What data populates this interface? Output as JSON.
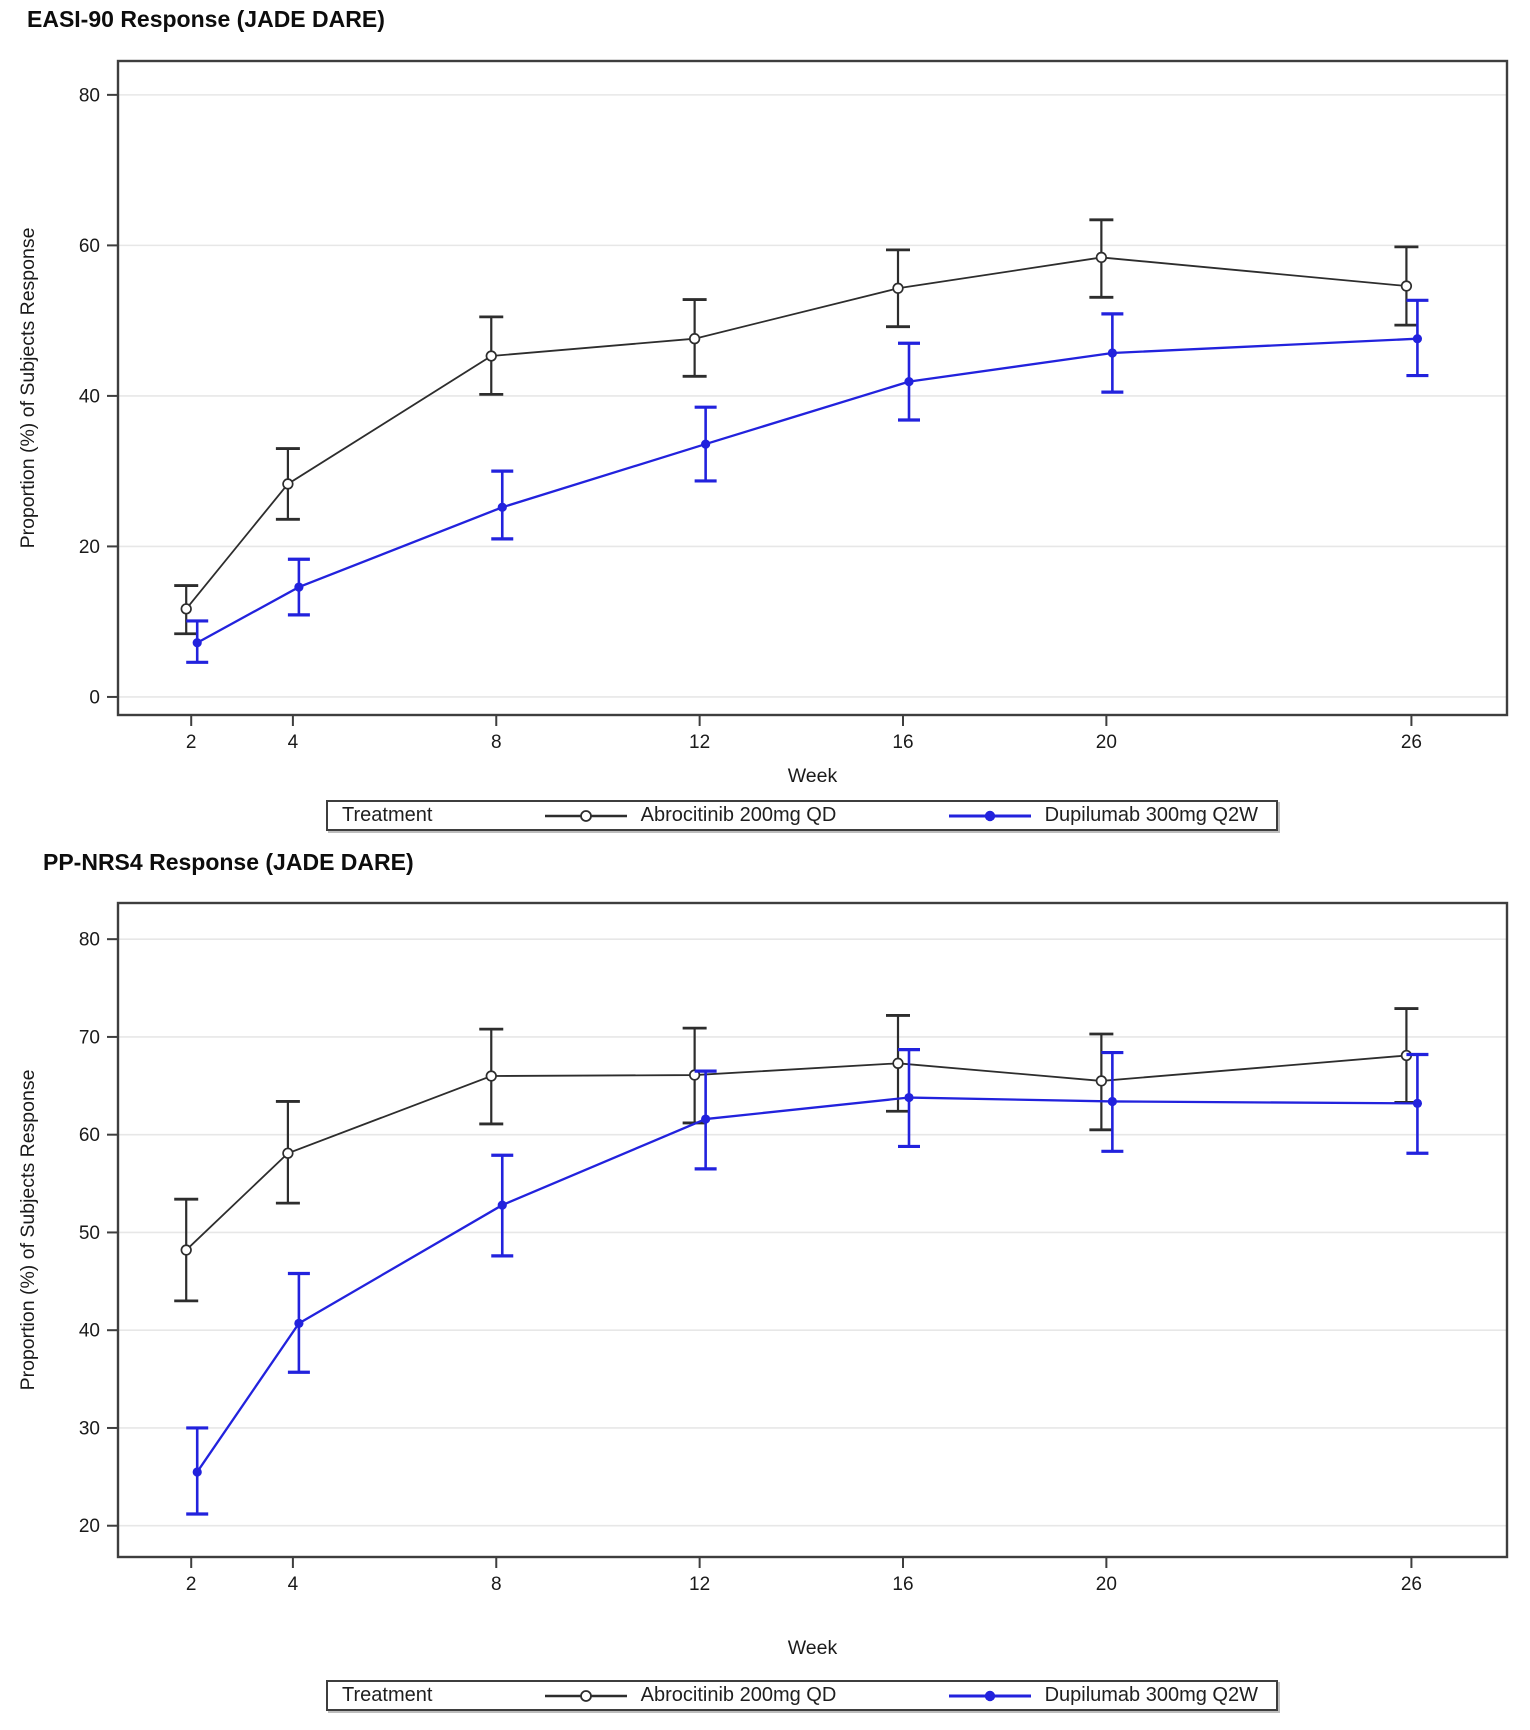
{
  "colors": {
    "abrocitinib": "#2d2d2d",
    "dupilumab": "#2222dd",
    "gridline": "#e7e7e7",
    "frame": "#3e3e3e",
    "text": "#1a1a1a"
  },
  "chart_data": [
    {
      "type": "line",
      "title": "EASI-90 Response (JADE DARE)",
      "xlabel": "Week",
      "ylabel": "Proportion (%) of Subjects Response",
      "x_ticks": [
        2,
        4,
        8,
        12,
        16,
        20,
        26
      ],
      "y_ticks": [
        0,
        20,
        40,
        60,
        80
      ],
      "xlim": [
        0.56,
        27.88
      ],
      "ylim": [
        -2.4,
        84.5
      ],
      "grid": true,
      "legend_label": "Treatment",
      "legend_position": "bottom",
      "series": [
        {
          "name": "Abrocitinib 200mg QD",
          "color": "#2d2d2d",
          "marker": "open-circle",
          "x": [
            2,
            4,
            8,
            12,
            16,
            20,
            26
          ],
          "y": [
            11.7,
            28.3,
            45.3,
            47.6,
            54.3,
            58.4,
            54.6
          ],
          "err_low": [
            8.4,
            23.6,
            40.2,
            42.6,
            49.2,
            53.1,
            49.4
          ],
          "err_high": [
            14.8,
            33.0,
            50.5,
            52.8,
            59.4,
            63.4,
            59.8
          ]
        },
        {
          "name": "Dupilumab 300mg Q2W",
          "color": "#2222dd",
          "marker": "filled-circle",
          "x": [
            2,
            4,
            8,
            12,
            16,
            20,
            26
          ],
          "y": [
            7.2,
            14.6,
            25.2,
            33.6,
            41.9,
            45.7,
            47.6
          ],
          "err_low": [
            4.6,
            10.9,
            21.0,
            28.7,
            36.8,
            40.5,
            42.7
          ],
          "err_high": [
            10.1,
            18.3,
            30.0,
            38.5,
            47.0,
            50.9,
            52.7
          ]
        }
      ]
    },
    {
      "type": "line",
      "title": "PP-NRS4 Response (JADE DARE)",
      "xlabel": "Week",
      "ylabel": "Proportion (%) of Subjects Response",
      "x_ticks": [
        2,
        4,
        8,
        12,
        16,
        20,
        26
      ],
      "y_ticks": [
        20,
        30,
        40,
        50,
        60,
        70,
        80
      ],
      "xlim": [
        0.56,
        27.88
      ],
      "ylim": [
        16.8,
        83.7
      ],
      "grid": true,
      "legend_label": "Treatment",
      "legend_position": "bottom",
      "series": [
        {
          "name": "Abrocitinib 200mg QD",
          "color": "#2d2d2d",
          "marker": "open-circle",
          "x": [
            2,
            4,
            8,
            12,
            16,
            20,
            26
          ],
          "y": [
            48.2,
            58.1,
            66.0,
            66.1,
            67.3,
            65.5,
            68.1
          ],
          "err_low": [
            43.0,
            53.0,
            61.1,
            61.2,
            62.4,
            60.5,
            63.3
          ],
          "err_high": [
            53.4,
            63.4,
            70.8,
            70.9,
            72.2,
            70.3,
            72.9
          ]
        },
        {
          "name": "Dupilumab 300mg Q2W",
          "color": "#2222dd",
          "marker": "filled-circle",
          "x": [
            2,
            4,
            8,
            12,
            16,
            20,
            26
          ],
          "y": [
            25.5,
            40.7,
            52.8,
            61.6,
            63.8,
            63.4,
            63.2
          ],
          "err_low": [
            21.2,
            35.7,
            47.6,
            56.5,
            58.8,
            58.3,
            58.1
          ],
          "err_high": [
            30.0,
            45.8,
            57.9,
            66.5,
            68.7,
            68.4,
            68.2
          ]
        }
      ]
    }
  ]
}
